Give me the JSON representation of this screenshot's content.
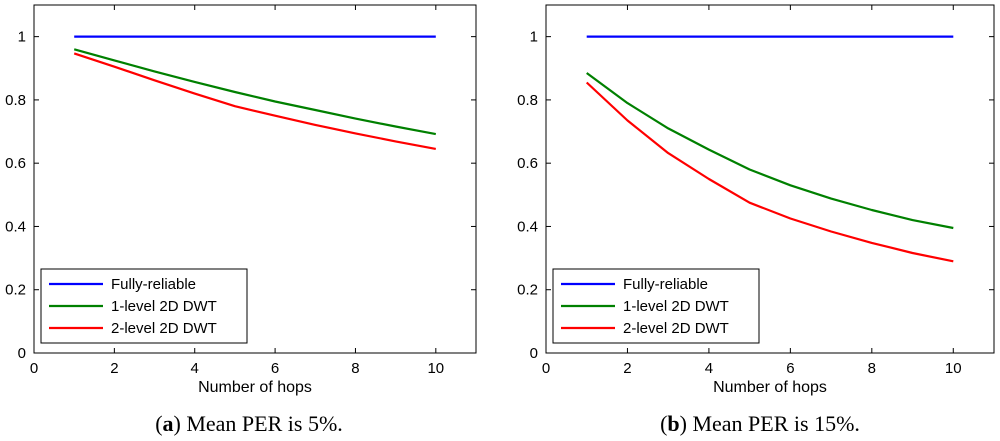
{
  "chart_data": [
    {
      "type": "line",
      "caption_letter": "a",
      "caption_text": "Mean PER is 5%.",
      "xlabel": "Number of hops",
      "ylabel": "",
      "xlim": [
        0,
        11
      ],
      "ylim": [
        0,
        1.1
      ],
      "xticks": [
        0,
        2,
        4,
        6,
        8,
        10
      ],
      "yticks": [
        0,
        0.2,
        0.4,
        0.6,
        0.8,
        1
      ],
      "legend_position": "bottom-left",
      "x": [
        1,
        2,
        3,
        4,
        5,
        6,
        7,
        8,
        9,
        10
      ],
      "series": [
        {
          "name": "Fully-reliable",
          "color": "#0000ff",
          "values": [
            1,
            1,
            1,
            1,
            1,
            1,
            1,
            1,
            1,
            1
          ]
        },
        {
          "name": "1-level 2D DWT",
          "color": "#008000",
          "values": [
            0.96,
            0.925,
            0.89,
            0.857,
            0.825,
            0.795,
            0.768,
            0.741,
            0.716,
            0.692
          ]
        },
        {
          "name": "2-level 2D DWT",
          "color": "#ff0000",
          "values": [
            0.947,
            0.905,
            0.862,
            0.82,
            0.78,
            0.75,
            0.721,
            0.694,
            0.669,
            0.645
          ]
        }
      ]
    },
    {
      "type": "line",
      "caption_letter": "b",
      "caption_text": "Mean PER is 15%.",
      "xlabel": "Number of hops",
      "ylabel": "",
      "xlim": [
        0,
        11
      ],
      "ylim": [
        0,
        1.1
      ],
      "xticks": [
        0,
        2,
        4,
        6,
        8,
        10
      ],
      "yticks": [
        0,
        0.2,
        0.4,
        0.6,
        0.8,
        1
      ],
      "legend_position": "bottom-left",
      "x": [
        1,
        2,
        3,
        4,
        5,
        6,
        7,
        8,
        9,
        10
      ],
      "series": [
        {
          "name": "Fully-reliable",
          "color": "#0000ff",
          "values": [
            1,
            1,
            1,
            1,
            1,
            1,
            1,
            1,
            1,
            1
          ]
        },
        {
          "name": "1-level 2D DWT",
          "color": "#008000",
          "values": [
            0.885,
            0.79,
            0.71,
            0.643,
            0.58,
            0.53,
            0.488,
            0.452,
            0.42,
            0.395
          ]
        },
        {
          "name": "2-level 2D DWT",
          "color": "#ff0000",
          "values": [
            0.855,
            0.735,
            0.632,
            0.55,
            0.475,
            0.425,
            0.384,
            0.348,
            0.316,
            0.29
          ]
        }
      ]
    }
  ]
}
